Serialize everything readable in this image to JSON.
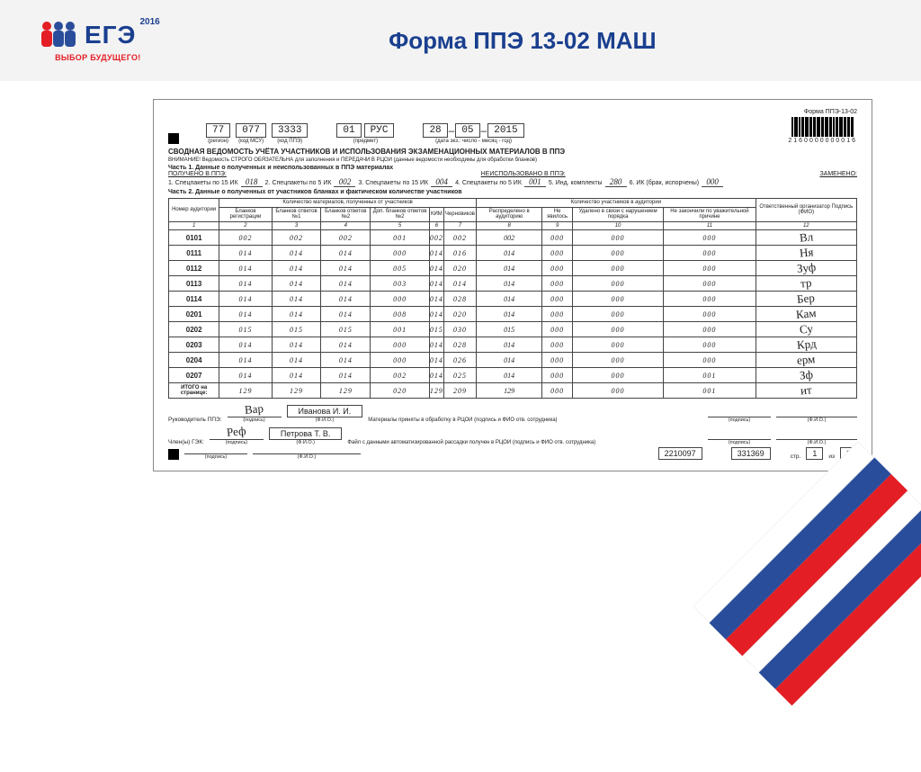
{
  "header": {
    "title": "Форма ППЭ 13-02 МАШ",
    "logo_text": "ЕГЭ",
    "logo_year": "2016",
    "logo_sub": "ВЫБОР БУДУЩЕГО!"
  },
  "corner_colors": {
    "white": "#ffffff",
    "blue": "#2a4d9b",
    "red": "#e31e24"
  },
  "accent_color": "#1a3f8f",
  "form": {
    "form_code": "Форма ППЭ-13-02",
    "region": "77",
    "msu": "077",
    "ppe": "3333",
    "subj_code": "01",
    "subj_name": "РУС",
    "date_d": "28",
    "date_m": "05",
    "date_y": "2015",
    "region_lbl": "(регион)",
    "msu_lbl": "(код МСУ)",
    "ppe_lbl": "(код ППЭ)",
    "subj_lbl": "(предмет)",
    "date_lbl": "(дата экз.: число - месяц - год)",
    "barcode_text": "2160000000016",
    "title": "СВОДНАЯ ВЕДОМОСТЬ УЧЁТА УЧАСТНИКОВ И ИСПОЛЬЗОВАНИЯ ЭКЗАМЕНАЦИОННЫХ МАТЕРИАЛОВ В ППЭ",
    "warning": "ВНИМАНИЕ! Ведомость СТРОГО ОБЯЗАТЕЛЬНА для заполнения и ПЕРЕДАЧИ В РЦОИ (данные ведомости необходимы для обработки бланков)",
    "part1_title": "Часть 1. Данные о полученных и неиспользованных в ППЭ материалах",
    "received": "ПОЛУЧЕНО В ППЭ:",
    "unused": "НЕИСПОЛЬЗОВАНО В ППЭ:",
    "replaced": "ЗАМЕНЕНО:",
    "p1": {
      "l1": "1. Спецпакеты по 15 ИК",
      "v1": "018",
      "l2": "2. Спецпакеты по 5 ИК",
      "v2": "002",
      "l3": "3. Спецпакеты по 15 ИК",
      "v3": "004",
      "l4": "4. Спецпакеты по 5 ИК",
      "v4": "001",
      "l5": "5. Инд. комплекты",
      "v5": "280",
      "l6": "6. ИК (брак, испорчены)",
      "v6": "000"
    },
    "part2_title": "Часть 2. Данные о полученных от участников бланках и фактическом количестве участников",
    "th_group1": "Количество материалов, полученных от участников",
    "th_group2": "Количество участников в аудитории",
    "th": {
      "c1": "Номер аудитории",
      "c2": "Бланков регистрации",
      "c3": "Бланков ответов №1",
      "c4": "Бланков ответов №2",
      "c5": "Доп. бланков ответов №2",
      "c6": "КИМ",
      "c7": "Черновиков",
      "c8": "Распределено в аудиторию",
      "c9": "Не явилось",
      "c10": "Удалено в связи с нарушением порядка",
      "c11": "Не закончили по уважительной причине",
      "c12": "Ответственный организатор Подпись (ФИО)"
    },
    "rows": [
      {
        "a": "0101",
        "v": [
          "002",
          "002",
          "002",
          "001",
          "002",
          "002",
          "002",
          "000",
          "000",
          "000"
        ],
        "sig": "Вл"
      },
      {
        "a": "0111",
        "v": [
          "014",
          "014",
          "014",
          "000",
          "014",
          "016",
          "014",
          "000",
          "000",
          "000"
        ],
        "sig": "Ня"
      },
      {
        "a": "0112",
        "v": [
          "014",
          "014",
          "014",
          "005",
          "014",
          "020",
          "014",
          "000",
          "000",
          "000"
        ],
        "sig": "Зуф"
      },
      {
        "a": "0113",
        "v": [
          "014",
          "014",
          "014",
          "003",
          "014",
          "014",
          "014",
          "000",
          "000",
          "000"
        ],
        "sig": "тр"
      },
      {
        "a": "0114",
        "v": [
          "014",
          "014",
          "014",
          "000",
          "014",
          "028",
          "014",
          "000",
          "000",
          "000"
        ],
        "sig": "Бер"
      },
      {
        "a": "0201",
        "v": [
          "014",
          "014",
          "014",
          "008",
          "014",
          "020",
          "014",
          "000",
          "000",
          "000"
        ],
        "sig": "Кам"
      },
      {
        "a": "0202",
        "v": [
          "015",
          "015",
          "015",
          "001",
          "015",
          "030",
          "015",
          "000",
          "000",
          "000"
        ],
        "sig": "Су"
      },
      {
        "a": "0203",
        "v": [
          "014",
          "014",
          "014",
          "000",
          "014",
          "028",
          "014",
          "000",
          "000",
          "000"
        ],
        "sig": "Крд"
      },
      {
        "a": "0204",
        "v": [
          "014",
          "014",
          "014",
          "000",
          "014",
          "026",
          "014",
          "000",
          "000",
          "000"
        ],
        "sig": "ерм"
      },
      {
        "a": "0207",
        "v": [
          "014",
          "014",
          "014",
          "002",
          "014",
          "025",
          "014",
          "000",
          "000",
          "001"
        ],
        "sig": "Зф"
      }
    ],
    "total_label": "ИТОГО на странице:",
    "totals": [
      "129",
      "129",
      "129",
      "020",
      "129",
      "209",
      "129",
      "000",
      "000",
      "001"
    ],
    "total_sig": "ит",
    "footer": {
      "head_lbl": "Руководитель ППЭ:",
      "head_sig": "Вар",
      "head_name": "Иванова И. И.",
      "gek_lbl": "Член(ы) ГЭК:",
      "gek_sig": "Реф",
      "gek_name": "Петрова Т. В.",
      "mat_lbl": "Материалы приняты в обработку в РЦОИ (подпись и ФИО отв. сотрудника)",
      "file_lbl": "Файл с данными автоматизированной рассадки получен в РЦОИ (подпись и ФИО отв. сотрудника)",
      "sig_lbl": "(подпись)",
      "fio_lbl": "(Ф.И.О.)",
      "code1": "2210097",
      "code2": "331369",
      "page_lbl": "стр.",
      "page": "1",
      "of_lbl": "из",
      "pages": "2"
    }
  }
}
